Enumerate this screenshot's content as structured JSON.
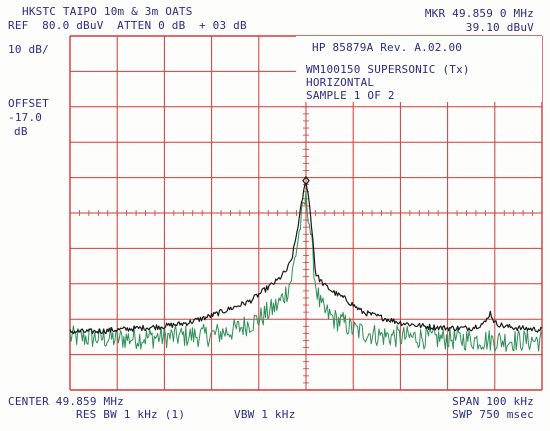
{
  "header": {
    "line1_left": "HKSTC TAIPO 10m & 3m OATS",
    "line2_left": "REF  80.0 dBuV  ATTEN 0 dB  + 03 dB",
    "marker_label": "MKR 49.859 0 MHz",
    "marker_value": "39.10 dBuV"
  },
  "left_panel": {
    "scale": "10 dB/",
    "offset_label": "OFFSET",
    "offset_value": "-17.0",
    "offset_unit": "dB"
  },
  "info_box": {
    "line1": "HP 85879A Rev. A.02.00",
    "line2": "WM100150 SUPERSONIC (Tx)",
    "line3": "HORIZONTAL",
    "line4": "SAMPLE 1 OF 2"
  },
  "footer": {
    "center": "CENTER 49.859 MHz",
    "span": "SPAN 100 kHz",
    "res_bw": "RES BW 1 kHz (1)",
    "vbw": "VBW 1 kHz",
    "sweep": "SWP 750 msec"
  },
  "colors": {
    "grid": "#d43a3a",
    "trace_max": "#1a1a1a",
    "trace_sample": "#2f8f5a",
    "text": "#2b2d86"
  },
  "chart_data": {
    "type": "line",
    "x_unit": "kHz offset from center 49.859 MHz",
    "xlim": [
      -50,
      50
    ],
    "ylim": [
      -20,
      80
    ],
    "y_unit": "dBuV",
    "grid": true,
    "marker": {
      "x": 0,
      "y": 39.1
    },
    "series": [
      {
        "x": [
          -50,
          -45,
          -40,
          -35,
          -30,
          -25,
          -20,
          -16,
          -12,
          -10,
          -8,
          -6,
          -4,
          -3,
          -2,
          -1,
          -0.5,
          0,
          0.5,
          1,
          1.5,
          2,
          3,
          4,
          6,
          8,
          10,
          12,
          16,
          20,
          25,
          30,
          35,
          38,
          39,
          40,
          41,
          42,
          45,
          50
        ],
        "y": [
          -3.5,
          -3.5,
          -3,
          -2.5,
          -2,
          -1,
          1,
          3,
          5,
          7,
          9,
          11,
          14,
          17,
          24,
          32,
          36,
          39.1,
          35,
          29,
          22,
          13,
          11,
          9.5,
          7.5,
          6,
          4,
          2,
          0.5,
          -1,
          -2,
          -2.5,
          -2.5,
          -1,
          2,
          -1,
          -1.5,
          -2,
          -2.5,
          -3
        ]
      },
      {
        "x": [
          -50,
          -40,
          -30,
          -20,
          -15,
          -10,
          -8,
          -6,
          -4,
          -3,
          -2,
          -1,
          -0.5,
          0,
          0.5,
          1,
          2,
          3,
          4,
          6,
          8,
          10,
          15,
          20,
          30,
          40,
          50
        ],
        "y": [
          -5,
          -5.5,
          -5,
          -4.5,
          -3,
          0,
          2,
          4,
          8,
          12,
          20,
          28,
          32,
          34,
          30,
          24,
          10,
          4,
          2,
          0,
          -1,
          -3,
          -4.5,
          -5,
          -5.5,
          -6,
          -6
        ]
      }
    ]
  }
}
